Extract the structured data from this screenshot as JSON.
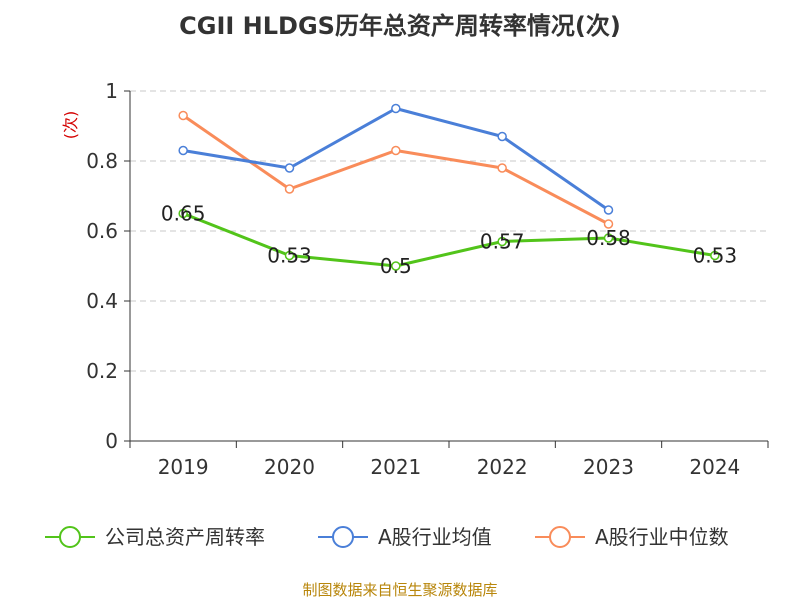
{
  "chart_data": {
    "type": "line",
    "title": "CGII HLDGS历年总资产周转率情况(次)",
    "ylabel": "(次)",
    "xlabel": "",
    "ylim": [
      0,
      1
    ],
    "yticks": [
      "0",
      "0.2",
      "0.4",
      "0.6",
      "0.8",
      "1"
    ],
    "categories": [
      "2019",
      "2020",
      "2021",
      "2022",
      "2023",
      "2024"
    ],
    "grid": true,
    "legend_position": "bottom",
    "series": [
      {
        "name": "公司总资产周转率",
        "color": "#52c41a",
        "values": [
          0.65,
          0.53,
          0.5,
          0.57,
          0.58,
          0.53
        ],
        "labels": [
          "0.65",
          "0.53",
          "0.5",
          "0.57",
          "0.58",
          "0.53"
        ]
      },
      {
        "name": "A股行业均值",
        "color": "#4a7fd8",
        "values": [
          0.83,
          0.78,
          0.95,
          0.87,
          0.66,
          null
        ]
      },
      {
        "name": "A股行业中位数",
        "color": "#f98c5a",
        "values": [
          0.93,
          0.72,
          0.83,
          0.78,
          0.62,
          null
        ]
      }
    ],
    "source": "制图数据来自恒生聚源数据库"
  }
}
